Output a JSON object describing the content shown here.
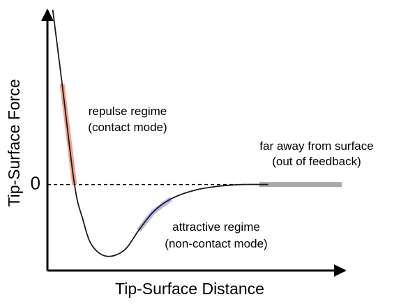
{
  "chart_data": {
    "type": "line",
    "title": "",
    "xlabel": "Tip-Surface Distance",
    "ylabel": "Tip-Surface Force",
    "ytick_labels": [
      "0"
    ],
    "xlim": [
      0,
      10
    ],
    "ylim": [
      -3,
      6
    ],
    "grid": false,
    "reference_line": {
      "y": 0,
      "style": "dashed"
    },
    "series": [
      {
        "x": [
          0.18,
          0.5,
          0.92,
          1.2,
          1.5,
          2.0,
          2.6,
          3.1,
          3.6,
          4.2,
          5.0,
          5.8,
          6.6,
          7.5
        ],
        "y": [
          6.1,
          3.5,
          0.0,
          -1.2,
          -2.1,
          -2.5,
          -2.3,
          -1.6,
          -0.95,
          -0.5,
          -0.2,
          -0.06,
          0.0,
          0.0
        ]
      }
    ],
    "highlights": [
      {
        "x": [
          0.5,
          0.92
        ],
        "color": "#f5a28a"
      },
      {
        "x": [
          3.1,
          4.2
        ],
        "color": "#b9b9ec"
      },
      {
        "x": [
          7.2,
          10.0
        ],
        "color": "#a8a8a8"
      }
    ],
    "annotations": [
      {
        "lines": [
          "repulse regime",
          "(contact mode)"
        ]
      },
      {
        "lines": [
          "far away from surface",
          "(out of feedback)"
        ]
      },
      {
        "lines": [
          "attractive regime",
          "(non-contact mode)"
        ]
      }
    ]
  }
}
